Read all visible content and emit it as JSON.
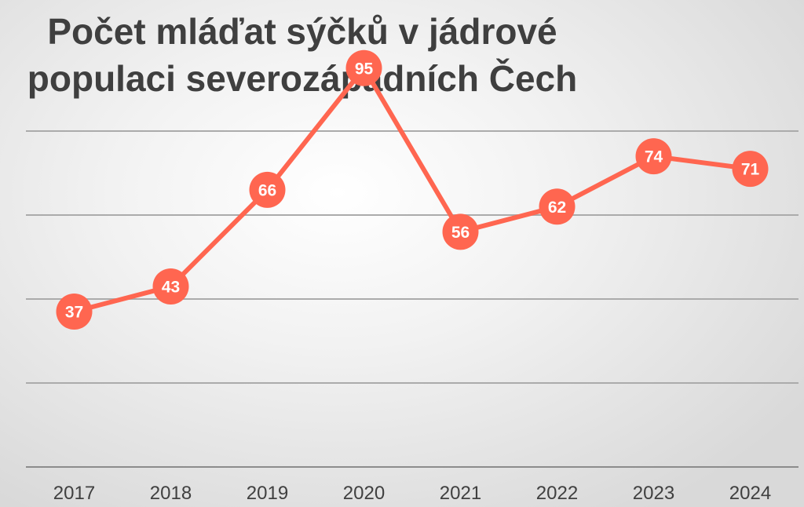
{
  "colors": {
    "series": "#ff6650",
    "grid": "#ababab",
    "title": "#3f3f3f",
    "label_text": "#ffffff"
  },
  "chart_data": {
    "type": "line",
    "title": "Počet mláďat sýčků v jádrové populaci severozápadních Čech",
    "xlabel": "",
    "ylabel": "",
    "categories": [
      "2017",
      "2018",
      "2019",
      "2020",
      "2021",
      "2022",
      "2023",
      "2024"
    ],
    "series": [
      {
        "values": [
          37,
          43,
          66,
          95,
          56,
          62,
          74,
          71
        ]
      }
    ],
    "ylim": [
      0,
      100
    ],
    "yticks": [
      0,
      20,
      40,
      60,
      80,
      100
    ],
    "y_tick_labels_visible": false,
    "grid": true,
    "data_labels": true,
    "markers": "circle",
    "legend": "none"
  }
}
